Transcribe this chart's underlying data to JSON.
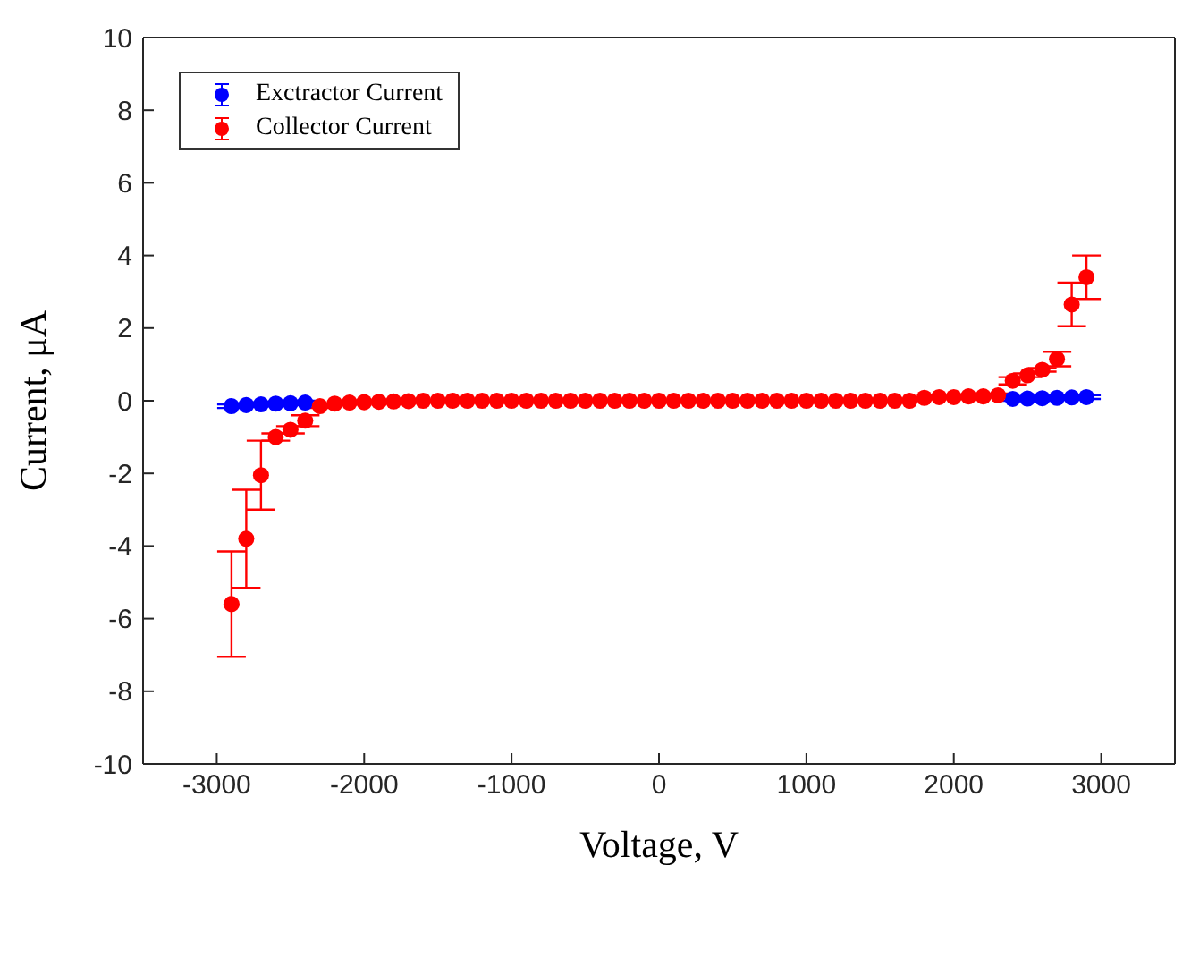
{
  "chart_data": {
    "type": "scatter",
    "xlabel": "Voltage, V",
    "ylabel": "Current, μA",
    "x": [
      -2900,
      -2800,
      -2700,
      -2600,
      -2500,
      -2400,
      -2300,
      -2200,
      -2100,
      -2000,
      -1900,
      -1800,
      -1700,
      -1600,
      -1500,
      -1400,
      -1300,
      -1200,
      -1100,
      -1000,
      -900,
      -800,
      -700,
      -600,
      -500,
      -400,
      -300,
      -200,
      -100,
      0,
      100,
      200,
      300,
      400,
      500,
      600,
      700,
      800,
      900,
      1000,
      1100,
      1200,
      1300,
      1400,
      1500,
      1600,
      1700,
      1800,
      1900,
      2000,
      2100,
      2200,
      2300,
      2400,
      2500,
      2600,
      2700,
      2800,
      2900
    ],
    "series": [
      {
        "name": "Exctractor Current",
        "color": "#0000ff",
        "values": [
          -0.15,
          -0.12,
          -0.1,
          -0.08,
          -0.07,
          -0.05,
          null,
          null,
          null,
          null,
          null,
          null,
          null,
          null,
          null,
          null,
          null,
          null,
          null,
          null,
          null,
          null,
          null,
          null,
          null,
          null,
          null,
          null,
          null,
          null,
          null,
          null,
          null,
          null,
          null,
          null,
          null,
          null,
          null,
          null,
          null,
          null,
          null,
          null,
          null,
          null,
          null,
          null,
          null,
          null,
          null,
          null,
          null,
          0.05,
          0.06,
          0.07,
          0.08,
          0.09,
          0.1
        ],
        "errors": [
          0.05,
          0.05,
          0.05,
          0.05,
          0.05,
          0.05,
          null,
          null,
          null,
          null,
          null,
          null,
          null,
          null,
          null,
          null,
          null,
          null,
          null,
          null,
          null,
          null,
          null,
          null,
          null,
          null,
          null,
          null,
          null,
          null,
          null,
          null,
          null,
          null,
          null,
          null,
          null,
          null,
          null,
          null,
          null,
          null,
          null,
          null,
          null,
          null,
          null,
          null,
          null,
          null,
          null,
          null,
          null,
          0.05,
          0.05,
          0.05,
          0.05,
          0.05,
          0.05
        ]
      },
      {
        "name": "Collector Current",
        "color": "#ff0000",
        "values": [
          -5.6,
          -3.8,
          -2.05,
          -1.0,
          -0.8,
          -0.55,
          -0.15,
          -0.08,
          -0.05,
          -0.04,
          -0.03,
          -0.02,
          -0.01,
          0,
          0,
          0,
          0,
          0,
          0,
          0,
          0,
          0,
          0,
          0,
          0,
          0,
          0,
          0,
          0,
          0,
          0,
          0,
          0,
          0,
          0,
          0,
          0,
          0,
          0,
          0,
          0,
          0,
          0,
          0,
          0,
          0,
          0,
          0.08,
          0.1,
          0.1,
          0.12,
          0.12,
          0.15,
          0.55,
          0.7,
          0.85,
          1.15,
          2.65,
          3.4
        ],
        "errors": [
          1.45,
          1.35,
          0.95,
          0.1,
          0.1,
          0.15,
          0.05,
          null,
          null,
          null,
          null,
          null,
          null,
          null,
          null,
          null,
          null,
          null,
          null,
          null,
          null,
          null,
          null,
          null,
          null,
          null,
          null,
          null,
          null,
          null,
          null,
          null,
          null,
          null,
          null,
          null,
          null,
          null,
          null,
          null,
          null,
          null,
          null,
          null,
          null,
          null,
          null,
          null,
          null,
          null,
          null,
          null,
          0.05,
          0.1,
          0.05,
          0.05,
          0.2,
          0.6,
          0.6
        ]
      }
    ],
    "xlim": [
      -3500,
      3500
    ],
    "xticks": [
      -3000,
      -2000,
      -1000,
      0,
      1000,
      2000,
      3000
    ],
    "ylim": [
      -10,
      10
    ],
    "yticks": [
      -10,
      -8,
      -6,
      -4,
      -2,
      0,
      2,
      4,
      6,
      8,
      10
    ],
    "legend": "top left",
    "marker": "circle"
  }
}
